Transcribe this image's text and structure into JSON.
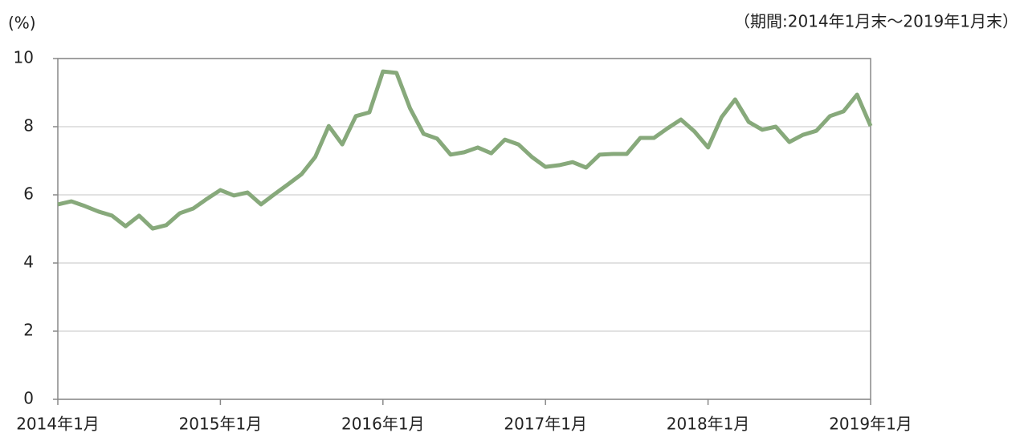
{
  "chart_data": {
    "type": "line",
    "y_unit_label": "(%)",
    "subtitle": "（期間:2014年1月末～2019年1月末）",
    "categories": [
      "2014年1月",
      null,
      null,
      null,
      null,
      null,
      null,
      null,
      null,
      null,
      null,
      null,
      "2015年1月",
      null,
      null,
      null,
      null,
      null,
      null,
      null,
      null,
      null,
      null,
      null,
      "2016年1月",
      null,
      null,
      null,
      null,
      null,
      null,
      null,
      null,
      null,
      null,
      null,
      "2017年1月",
      null,
      null,
      null,
      null,
      null,
      null,
      null,
      null,
      null,
      null,
      null,
      "2018年1月",
      null,
      null,
      null,
      null,
      null,
      null,
      null,
      null,
      null,
      null,
      null,
      "2019年1月"
    ],
    "series": [
      {
        "color": "#87a97b",
        "values": [
          5.72,
          5.81,
          5.67,
          5.51,
          5.39,
          5.08,
          5.39,
          5.01,
          5.11,
          5.46,
          5.6,
          5.88,
          6.14,
          5.98,
          6.07,
          5.72,
          6.02,
          6.31,
          6.61,
          7.11,
          8.02,
          7.48,
          8.31,
          8.42,
          9.62,
          9.58,
          8.54,
          7.79,
          7.65,
          7.18,
          7.25,
          7.39,
          7.22,
          7.62,
          7.48,
          7.11,
          6.82,
          6.87,
          6.96,
          6.8,
          7.18,
          7.2,
          7.2,
          7.67,
          7.67,
          7.95,
          8.21,
          7.86,
          7.39,
          8.28,
          8.8,
          8.14,
          7.91,
          8.0,
          7.55,
          7.76,
          7.88,
          8.31,
          8.45,
          8.94,
          8.02
        ]
      }
    ],
    "ylim": [
      0,
      10
    ],
    "yticks": [
      0,
      2,
      4,
      6,
      8,
      10
    ],
    "grid": true
  }
}
